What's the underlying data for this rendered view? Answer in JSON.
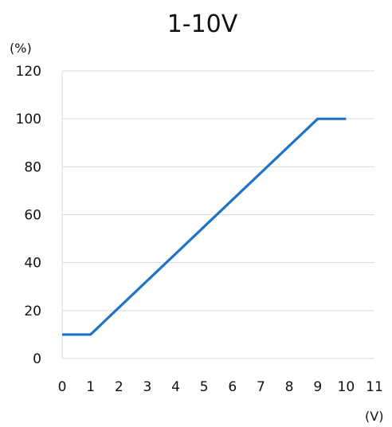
{
  "chart_data": {
    "type": "line",
    "title": "1-10V",
    "ylabel": "(%)",
    "xlabel": "(V)",
    "xlim": [
      0,
      11
    ],
    "ylim": [
      0,
      120
    ],
    "x_ticks": [
      "0",
      "1",
      "2",
      "3",
      "4",
      "5",
      "6",
      "7",
      "8",
      "9",
      "10",
      "11"
    ],
    "y_ticks": [
      "0",
      "20",
      "40",
      "60",
      "80",
      "100",
      "120"
    ],
    "grid": "horizontal",
    "series": [
      {
        "color": "#1f73c7",
        "x": [
          0,
          1,
          9,
          10
        ],
        "y": [
          10,
          10,
          100,
          100
        ]
      }
    ]
  }
}
